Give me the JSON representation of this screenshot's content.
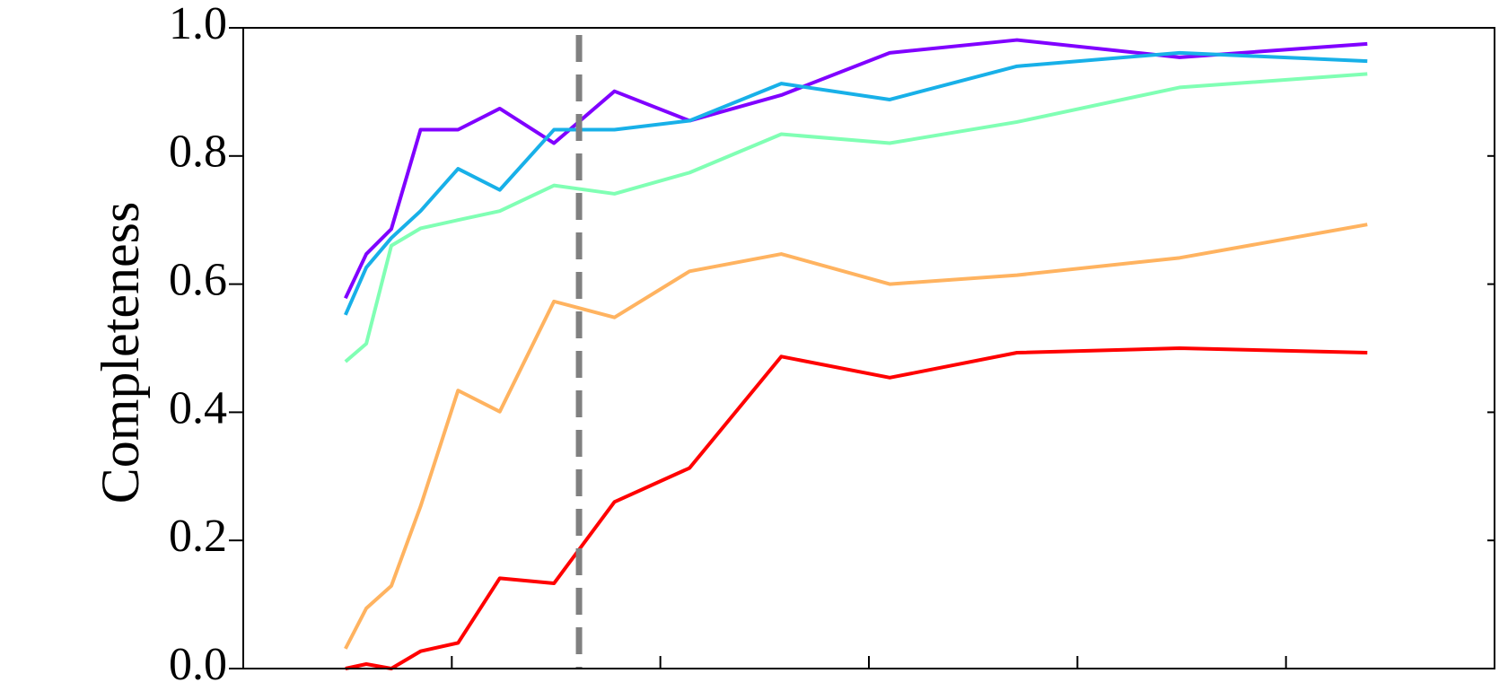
{
  "chart_data": {
    "type": "line",
    "ylabel": "Completeness",
    "xlim": [
      0,
      6
    ],
    "xticks": [
      0,
      1,
      2,
      3,
      4,
      5,
      6
    ],
    "ylim": [
      0,
      1
    ],
    "yticks": [
      {
        "value": 0,
        "label": "0.0"
      },
      0.2,
      0.4,
      0.6,
      0.8,
      {
        "value": 1,
        "label": "1.0"
      }
    ],
    "vline": 1.61,
    "vline_color": "#808080",
    "x": [
      0.49,
      0.59,
      0.71,
      0.85,
      1.03,
      1.23,
      1.49,
      1.78,
      2.14,
      2.58,
      3.1,
      3.71,
      4.49,
      5.39
    ],
    "series": [
      {
        "color": "#8000ff",
        "values": [
          0.578,
          0.647,
          0.686,
          0.841,
          0.841,
          0.874,
          0.82,
          0.901,
          0.855,
          0.895,
          0.961,
          0.981,
          0.954,
          0.975
        ]
      },
      {
        "color": "#18b0e8",
        "values": [
          0.552,
          0.626,
          0.672,
          0.714,
          0.78,
          0.747,
          0.841,
          0.841,
          0.855,
          0.913,
          0.888,
          0.94,
          0.961,
          0.948
        ]
      },
      {
        "color": "#80ffb4",
        "values": [
          0.479,
          0.507,
          0.66,
          0.687,
          0.7,
          0.714,
          0.754,
          0.741,
          0.774,
          0.834,
          0.82,
          0.853,
          0.907,
          0.928
        ]
      },
      {
        "color": "#ffb360",
        "values": [
          0.031,
          0.094,
          0.129,
          0.253,
          0.434,
          0.401,
          0.573,
          0.548,
          0.62,
          0.647,
          0.6,
          0.614,
          0.641,
          0.693
        ]
      },
      {
        "color": "#ff0000",
        "values": [
          0.0,
          0.007,
          0.0,
          0.027,
          0.04,
          0.141,
          0.133,
          0.26,
          0.313,
          0.487,
          0.454,
          0.493,
          0.5,
          0.493
        ]
      }
    ]
  }
}
